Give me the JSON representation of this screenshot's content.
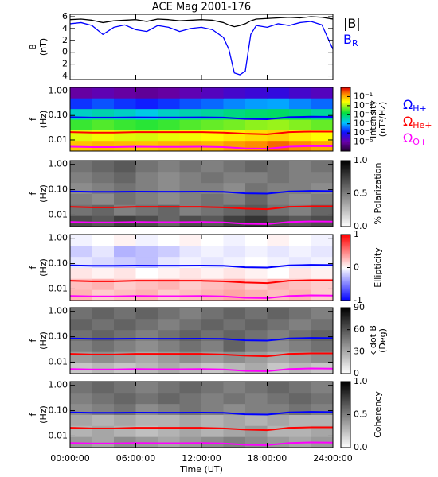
{
  "chart_data": [
    {
      "type": "line",
      "title": "ACE Mag 2001-176",
      "ylabel": [
        "B",
        "(nT)"
      ],
      "x": [
        0,
        1,
        2,
        3,
        4,
        5,
        6,
        7,
        8,
        9,
        10,
        11,
        12,
        13,
        14,
        14.5,
        15,
        15.5,
        16,
        16.5,
        17,
        18,
        19,
        20,
        21,
        22,
        23,
        24
      ],
      "series": [
        {
          "name": "|B|",
          "color": "#000000",
          "values": [
            5.5,
            5.6,
            5.4,
            5.0,
            5.3,
            5.4,
            5.5,
            5.2,
            5.6,
            5.5,
            5.3,
            5.4,
            5.5,
            5.4,
            5.0,
            4.6,
            4.3,
            4.5,
            4.8,
            5.3,
            5.6,
            5.7,
            5.8,
            5.9,
            5.8,
            6.0,
            5.9,
            5.6
          ]
        },
        {
          "name": "B",
          "subscript": "R",
          "color": "#0000ff",
          "values": [
            4.8,
            5.0,
            4.5,
            3.0,
            4.2,
            4.6,
            3.8,
            3.5,
            4.5,
            4.2,
            3.5,
            4.0,
            4.2,
            3.8,
            2.5,
            0.5,
            -3.5,
            -3.8,
            -3.2,
            3.0,
            4.5,
            4.2,
            4.8,
            4.5,
            5.0,
            5.2,
            4.6,
            0.5
          ]
        }
      ],
      "xlim": [
        0,
        24
      ],
      "xticks": [
        0,
        6,
        12,
        18,
        24
      ],
      "ylim": [
        -4.6,
        6.4
      ],
      "yticks": [
        -4,
        -2,
        0,
        2,
        4,
        6
      ]
    },
    {
      "type": "heatmap",
      "ylabel": [
        "f",
        "(Hz)"
      ],
      "zlabel": [
        "Intensity",
        "(nT²/Hz)"
      ],
      "colormap": "rainbow",
      "ylog": true,
      "zlog": true,
      "x_bins": [
        0,
        2,
        4,
        6,
        8,
        10,
        12,
        14,
        16,
        18,
        20,
        22,
        24
      ],
      "y_bins": [
        0.0035,
        0.0095,
        0.026,
        0.07,
        0.19,
        0.52,
        1.4
      ],
      "z": [
        [
          0.08,
          0.1,
          0.09,
          0.08,
          0.1,
          0.12,
          0.1,
          0.15,
          0.2,
          0.3,
          0.2,
          0.12
        ],
        [
          0.02,
          0.025,
          0.02,
          0.018,
          0.022,
          0.025,
          0.03,
          0.04,
          0.05,
          0.06,
          0.04,
          0.03
        ],
        [
          0.003,
          0.004,
          0.003,
          0.0025,
          0.003,
          0.004,
          0.005,
          0.006,
          0.008,
          0.009,
          0.007,
          0.005
        ],
        [
          0.0003,
          0.0004,
          0.0003,
          0.0002,
          0.0003,
          0.0004,
          0.0005,
          0.0007,
          0.0009,
          0.001,
          0.0008,
          0.0005
        ],
        [
          2e-05,
          3e-05,
          2e-05,
          1.5e-05,
          2e-05,
          3e-05,
          4e-05,
          6e-05,
          8e-05,
          9e-05,
          6e-05,
          4e-05
        ],
        [
          1e-06,
          1.5e-06,
          1e-06,
          8e-07,
          1e-06,
          1.5e-06,
          2e-06,
          3e-06,
          4e-06,
          5e-06,
          3e-06,
          2e-06
        ]
      ],
      "zlim": [
        1e-07,
        1
      ],
      "zticks": [
        {
          "value": 0.1,
          "label": "10⁻¹"
        },
        {
          "value": 0.01,
          "label": "10⁻²"
        },
        {
          "value": 0.001,
          "label": "10⁻³"
        },
        {
          "value": 0.0001,
          "label": "10⁻⁴"
        },
        {
          "value": 1e-05,
          "label": "10⁻⁵"
        },
        {
          "value": 1e-06,
          "label": "10⁻⁶"
        }
      ],
      "x": [
        0,
        2,
        4,
        6,
        8,
        10,
        12,
        14,
        16,
        18,
        20,
        22,
        24
      ],
      "series": [
        {
          "name": "Ω",
          "subscript": "H+",
          "color": "#0000ff",
          "values": [
            0.085,
            0.082,
            0.082,
            0.084,
            0.083,
            0.083,
            0.084,
            0.082,
            0.072,
            0.07,
            0.085,
            0.089,
            0.088
          ]
        },
        {
          "name": "Ω",
          "subscript": "He+",
          "color": "#ff0000",
          "values": [
            0.021,
            0.02,
            0.02,
            0.021,
            0.021,
            0.021,
            0.021,
            0.02,
            0.018,
            0.017,
            0.021,
            0.022,
            0.022
          ]
        },
        {
          "name": "Ω",
          "subscript": "O+",
          "color": "#ff00ff",
          "values": [
            0.0053,
            0.0051,
            0.0051,
            0.0053,
            0.0052,
            0.0052,
            0.0053,
            0.0051,
            0.0045,
            0.0044,
            0.0053,
            0.0056,
            0.0055
          ]
        }
      ],
      "xlim": [
        0,
        24
      ],
      "xticks": [
        0,
        6,
        12,
        18,
        24
      ],
      "ylim": [
        0.0035,
        1.4
      ],
      "yticks": [
        {
          "value": 0.01,
          "label": "0.01"
        },
        {
          "value": 0.1,
          "label": "0.10"
        },
        {
          "value": 1,
          "label": "1.00"
        }
      ]
    },
    {
      "type": "heatmap",
      "ylabel": [
        "f",
        "(Hz)"
      ],
      "zlabel": [
        "% Polarization"
      ],
      "colormap": "gray_r",
      "ylog": true,
      "x_bins": [
        0,
        2,
        4,
        6,
        8,
        10,
        12,
        14,
        16,
        18,
        20,
        22,
        24
      ],
      "y_bins": [
        0.0035,
        0.0095,
        0.026,
        0.07,
        0.19,
        0.52,
        1.4
      ],
      "z": [
        [
          0.7,
          0.65,
          0.75,
          0.7,
          0.6,
          0.7,
          0.65,
          0.75,
          0.8,
          0.7,
          0.65,
          0.7
        ],
        [
          0.55,
          0.6,
          0.5,
          0.55,
          0.6,
          0.5,
          0.55,
          0.6,
          0.65,
          0.55,
          0.5,
          0.6
        ],
        [
          0.5,
          0.45,
          0.55,
          0.5,
          0.45,
          0.5,
          0.55,
          0.5,
          0.6,
          0.5,
          0.45,
          0.5
        ],
        [
          0.45,
          0.5,
          0.55,
          0.5,
          0.45,
          0.5,
          0.5,
          0.45,
          0.55,
          0.5,
          0.5,
          0.45
        ],
        [
          0.5,
          0.55,
          0.6,
          0.5,
          0.45,
          0.5,
          0.55,
          0.5,
          0.5,
          0.55,
          0.5,
          0.5
        ],
        [
          0.55,
          0.6,
          0.65,
          0.55,
          0.5,
          0.55,
          0.5,
          0.55,
          0.6,
          0.55,
          0.5,
          0.55
        ]
      ],
      "zlim": [
        0,
        1
      ],
      "zticks": [
        {
          "value": 0,
          "label": "0.0"
        },
        {
          "value": 0.5,
          "label": "0.5"
        },
        {
          "value": 1,
          "label": "1.0"
        }
      ],
      "xlim": [
        0,
        24
      ],
      "xticks": [
        0,
        6,
        12,
        18,
        24
      ],
      "ylim": [
        0.0035,
        1.4
      ],
      "yticks": [
        {
          "value": 0.01,
          "label": "0.01"
        },
        {
          "value": 0.1,
          "label": "0.10"
        },
        {
          "value": 1,
          "label": "1.00"
        }
      ]
    },
    {
      "type": "heatmap",
      "ylabel": [
        "f",
        "(Hz)"
      ],
      "zlabel": [
        "Ellipticity"
      ],
      "colormap": "bwr",
      "ylog": true,
      "x_bins": [
        0,
        2,
        4,
        6,
        8,
        10,
        12,
        14,
        16,
        18,
        20,
        22,
        24
      ],
      "y_bins": [
        0.0035,
        0.0095,
        0.026,
        0.07,
        0.19,
        0.52,
        1.4
      ],
      "z": [
        [
          0.3,
          0.2,
          0.25,
          0.3,
          0.2,
          0.25,
          0.3,
          0.35,
          0.3,
          0.25,
          0.3,
          0.2
        ],
        [
          0.25,
          0.3,
          0.2,
          0.25,
          0.3,
          0.2,
          0.25,
          0.3,
          0.2,
          0.3,
          0.25,
          0.2
        ],
        [
          0.1,
          0.05,
          0.1,
          0,
          0.05,
          0.1,
          0.05,
          0.1,
          0.05,
          0,
          0.1,
          0.05
        ],
        [
          -0.1,
          -0.15,
          -0.2,
          -0.25,
          -0.1,
          -0.05,
          -0.1,
          -0.05,
          0,
          -0.05,
          -0.1,
          -0.05
        ],
        [
          -0.2,
          -0.1,
          -0.3,
          -0.25,
          -0.2,
          -0.1,
          -0.05,
          -0.1,
          -0.05,
          -0.1,
          -0.05,
          -0.1
        ],
        [
          -0.05,
          0,
          0.05,
          -0.05,
          0,
          0.05,
          0,
          -0.05,
          0,
          0.05,
          0,
          -0.05
        ]
      ],
      "zlim": [
        -1,
        1
      ],
      "zticks": [
        -1,
        0,
        1
      ],
      "xlim": [
        0,
        24
      ],
      "xticks": [
        0,
        6,
        12,
        18,
        24
      ],
      "ylim": [
        0.0035,
        1.4
      ],
      "yticks": [
        {
          "value": 0.01,
          "label": "0.01"
        },
        {
          "value": 0.1,
          "label": "0.10"
        },
        {
          "value": 1,
          "label": "1.00"
        }
      ]
    },
    {
      "type": "heatmap",
      "ylabel": [
        "f",
        "(Hz)"
      ],
      "zlabel": [
        "k dot B",
        "(Deg)"
      ],
      "colormap": "gray_r",
      "ylog": true,
      "x_bins": [
        0,
        2,
        4,
        6,
        8,
        10,
        12,
        14,
        16,
        18,
        20,
        22,
        24
      ],
      "y_bins": [
        0.0035,
        0.0095,
        0.026,
        0.07,
        0.19,
        0.52,
        1.4
      ],
      "z": [
        [
          20,
          25,
          20,
          25,
          30,
          25,
          20,
          25,
          30,
          20,
          25,
          20
        ],
        [
          35,
          40,
          35,
          30,
          35,
          40,
          35,
          40,
          35,
          30,
          35,
          40
        ],
        [
          45,
          50,
          45,
          40,
          45,
          50,
          45,
          55,
          45,
          40,
          45,
          50
        ],
        [
          50,
          55,
          50,
          45,
          50,
          55,
          50,
          55,
          50,
          45,
          50,
          55
        ],
        [
          55,
          50,
          55,
          50,
          45,
          50,
          55,
          50,
          55,
          50,
          45,
          50
        ],
        [
          50,
          55,
          50,
          55,
          50,
          45,
          50,
          55,
          50,
          55,
          50,
          45
        ]
      ],
      "zlim": [
        0,
        90
      ],
      "zticks": [
        0,
        30,
        60,
        90
      ],
      "xlim": [
        0,
        24
      ],
      "xticks": [
        0,
        6,
        12,
        18,
        24
      ],
      "ylim": [
        0.0035,
        1.4
      ],
      "yticks": [
        {
          "value": 0.01,
          "label": "0.01"
        },
        {
          "value": 0.1,
          "label": "0.10"
        },
        {
          "value": 1,
          "label": "1.00"
        }
      ]
    },
    {
      "type": "heatmap",
      "ylabel": [
        "f",
        "(Hz)"
      ],
      "zlabel": [
        "Coherency"
      ],
      "colormap": "gray_r",
      "ylog": true,
      "xlabel": "Time (UT)",
      "x_bins": [
        0,
        2,
        4,
        6,
        8,
        10,
        12,
        14,
        16,
        18,
        20,
        22,
        24
      ],
      "y_bins": [
        0.0035,
        0.0095,
        0.026,
        0.07,
        0.19,
        0.52,
        1.4
      ],
      "z": [
        [
          0.4,
          0.35,
          0.45,
          0.4,
          0.35,
          0.4,
          0.45,
          0.5,
          0.45,
          0.4,
          0.35,
          0.4
        ],
        [
          0.3,
          0.35,
          0.3,
          0.25,
          0.3,
          0.35,
          0.3,
          0.35,
          0.4,
          0.3,
          0.3,
          0.35
        ],
        [
          0.35,
          0.3,
          0.35,
          0.3,
          0.3,
          0.35,
          0.3,
          0.35,
          0.3,
          0.35,
          0.3,
          0.3
        ],
        [
          0.45,
          0.5,
          0.55,
          0.45,
          0.5,
          0.55,
          0.5,
          0.45,
          0.5,
          0.5,
          0.55,
          0.5
        ],
        [
          0.5,
          0.55,
          0.6,
          0.55,
          0.6,
          0.55,
          0.5,
          0.55,
          0.5,
          0.55,
          0.6,
          0.55
        ],
        [
          0.55,
          0.6,
          0.55,
          0.5,
          0.55,
          0.6,
          0.55,
          0.5,
          0.55,
          0.6,
          0.55,
          0.5
        ]
      ],
      "zlim": [
        0,
        1
      ],
      "zticks": [
        {
          "value": 0,
          "label": "0.0"
        },
        {
          "value": 0.5,
          "label": "0.5"
        },
        {
          "value": 1,
          "label": "1.0"
        }
      ],
      "xlim": [
        0,
        24
      ],
      "xticks": [
        {
          "value": 0,
          "label": "00:00:00"
        },
        {
          "value": 6,
          "label": "06:00:00"
        },
        {
          "value": 12,
          "label": "12:00:00"
        },
        {
          "value": 18,
          "label": "18:00:00"
        },
        {
          "value": 24,
          "label": "24:00:00"
        }
      ],
      "ylim": [
        0.0035,
        1.4
      ],
      "yticks": [
        {
          "value": 0.01,
          "label": "0.01"
        },
        {
          "value": 0.1,
          "label": "0.10"
        },
        {
          "value": 1,
          "label": "1.00"
        }
      ]
    }
  ]
}
